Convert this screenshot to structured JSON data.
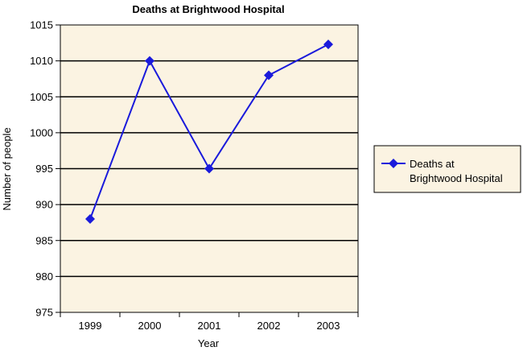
{
  "chart_data": {
    "type": "line",
    "title": "Deaths at Brightwood Hospital",
    "xlabel": "Year",
    "ylabel": "Number of people",
    "categories": [
      "1999",
      "2000",
      "2001",
      "2002",
      "2003"
    ],
    "series": [
      {
        "name": "Deaths at Brightwood Hospital",
        "values": [
          988,
          1010,
          995,
          1008,
          1012.3
        ]
      }
    ],
    "ylim": [
      975,
      1015
    ],
    "yticks": [
      "975",
      "980",
      "985",
      "990",
      "995",
      "1000",
      "1005",
      "1010",
      "1015"
    ],
    "grid": "horizontal",
    "legend_position": "right",
    "legend_lines": [
      "Deaths at",
      "Brightwood Hospital"
    ],
    "colors": {
      "series": "#1a1adb",
      "plot_background": "#fbf3e2",
      "legend_background": "#fbf3e2",
      "grid": "#000000"
    },
    "marker": "diamond"
  }
}
